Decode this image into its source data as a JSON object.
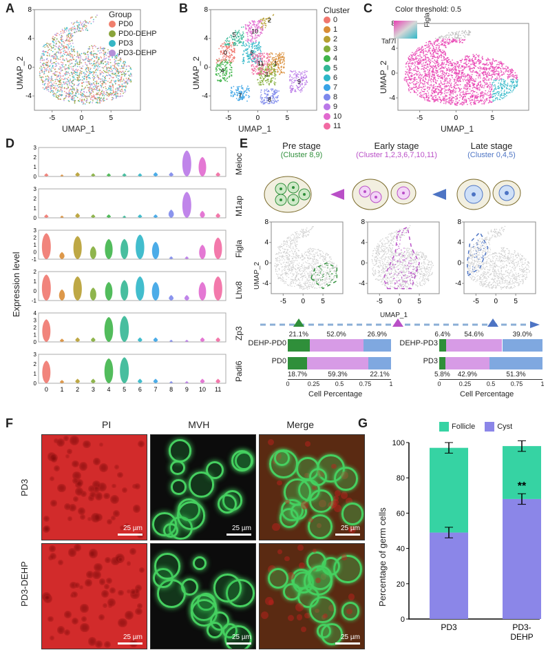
{
  "panels": {
    "A": "A",
    "B": "B",
    "C": "C",
    "D": "D",
    "E": "E",
    "F": "F",
    "G": "G"
  },
  "umap": {
    "x_label": "UMAP_1",
    "y_label": "UMAP_2",
    "xlim": [
      -8,
      10
    ],
    "ylim": [
      -6,
      8
    ],
    "xticks": [
      -5,
      0,
      5
    ],
    "yticks": [
      -4,
      0,
      4,
      8
    ]
  },
  "panelA": {
    "legend_title": "Group",
    "groups": [
      {
        "label": "PD0",
        "color": "#f07f6d"
      },
      {
        "label": "PD0-DEHP",
        "color": "#89a43a"
      },
      {
        "label": "PD3",
        "color": "#36b6c5"
      },
      {
        "label": "PD3-DEHP",
        "color": "#b48fd8"
      }
    ]
  },
  "panelB": {
    "legend_title": "Cluster",
    "clusters": [
      {
        "id": "0",
        "color": "#f0776e"
      },
      {
        "id": "1",
        "color": "#d98d36"
      },
      {
        "id": "2",
        "color": "#b79f31"
      },
      {
        "id": "3",
        "color": "#83ad3a"
      },
      {
        "id": "4",
        "color": "#3fb54a"
      },
      {
        "id": "5",
        "color": "#34b795"
      },
      {
        "id": "6",
        "color": "#2db6c8"
      },
      {
        "id": "7",
        "color": "#39a3e6"
      },
      {
        "id": "8",
        "color": "#7d88ec"
      },
      {
        "id": "9",
        "color": "#b978e8"
      },
      {
        "id": "10",
        "color": "#e169cf"
      },
      {
        "id": "11",
        "color": "#f26aa2"
      }
    ]
  },
  "panelC": {
    "threshold_label": "Color threshold: 0.5",
    "gene_top": "Figla",
    "gene_bottom": "Taf7l",
    "color_top": "#e83fb2",
    "color_bottom": "#2fb7c8"
  },
  "panelD": {
    "y_label": "Expression level",
    "x_ticks": [
      "0",
      "1",
      "2",
      "3",
      "4",
      "5",
      "6",
      "7",
      "8",
      "9",
      "10",
      "11"
    ],
    "genes": [
      {
        "name": "Meioc",
        "y_ticks": [
          "0",
          "1",
          "2",
          "3"
        ],
        "profile": [
          0.3,
          0.2,
          0.4,
          0.3,
          0.3,
          0.3,
          0.3,
          0.4,
          0.4,
          2.4,
          1.8,
          0.4
        ]
      },
      {
        "name": "M1ap",
        "y_ticks": [
          "0",
          "1",
          "2",
          "3"
        ],
        "profile": [
          0.3,
          0.2,
          0.4,
          0.3,
          0.3,
          0.2,
          0.3,
          0.3,
          0.7,
          2.2,
          0.6,
          0.4
        ]
      },
      {
        "name": "Figla",
        "y_ticks": [
          "-1",
          "0",
          "1",
          "2",
          "3"
        ],
        "profile": [
          1.8,
          0.5,
          1.6,
          0.9,
          1.4,
          1.4,
          1.7,
          1.2,
          0.2,
          0.2,
          1.0,
          1.5
        ]
      },
      {
        "name": "Lhx8",
        "y_ticks": [
          "-1",
          "0",
          "1",
          "2"
        ],
        "profile": [
          1.4,
          0.6,
          1.3,
          0.7,
          1.0,
          1.1,
          1.3,
          1.0,
          0.3,
          0.3,
          1.0,
          1.3
        ]
      },
      {
        "name": "Zp3",
        "y_ticks": [
          "0",
          "1",
          "2",
          "3",
          "4"
        ],
        "profile": [
          2.0,
          0.3,
          0.4,
          0.4,
          2.2,
          2.3,
          0.4,
          0.4,
          0.2,
          0.2,
          0.4,
          0.4
        ]
      },
      {
        "name": "Padi6",
        "y_ticks": [
          "0",
          "1",
          "2",
          "3"
        ],
        "profile": [
          2.0,
          0.3,
          0.4,
          0.4,
          2.2,
          2.3,
          0.4,
          0.4,
          0.2,
          0.2,
          0.4,
          0.4
        ]
      }
    ]
  },
  "panelE": {
    "stages": [
      {
        "title": "Pre stage",
        "sub": "(Cluster 8,9)",
        "color": "#2f8f3a"
      },
      {
        "title": "Early stage",
        "sub": "(Cluster 1,2,3,6,7,10,11)",
        "color": "#b94fc7"
      },
      {
        "title": "Late stage",
        "sub": "(Cluster 0,4,5)",
        "color": "#4d74c4"
      }
    ],
    "bar": {
      "x_label": "Cell Percentage",
      "x_ticks": [
        "0",
        "0.25",
        "0.5",
        "0.75",
        "1"
      ],
      "sets": [
        {
          "rows": [
            {
              "label": "DEHP-PD0",
              "values": [
                21.1,
                52.0,
                26.9
              ],
              "labels": [
                "21.1%",
                "52.0%",
                "26.9%"
              ]
            },
            {
              "label": "PD0",
              "values": [
                18.7,
                59.3,
                22.1
              ],
              "labels": [
                "18.7%",
                "59.3%",
                "22.1%"
              ]
            }
          ]
        },
        {
          "rows": [
            {
              "label": "DEHP-PD3",
              "values": [
                6.4,
                54.6,
                39.0
              ],
              "labels": [
                "6.4%",
                "54.6%",
                "39.0%"
              ]
            },
            {
              "label": "PD3",
              "values": [
                5.8,
                42.9,
                51.3
              ],
              "labels": [
                "5.8%",
                "42.9%",
                "51.3%"
              ]
            }
          ]
        }
      ],
      "seg_colors": [
        "#2f8f3a",
        "#d79be6",
        "#7fa8e0"
      ]
    }
  },
  "panelF": {
    "col_headers": [
      "PI",
      "MVH",
      "Merge"
    ],
    "row_headers": [
      "PD3",
      "PD3-DEHP"
    ],
    "scale_label": "25 µm",
    "colors": {
      "pi": "#d22b2b",
      "mvh": "#46d060",
      "merge_bg": "#5a2a12",
      "mvh_bg": "#0c0c0c"
    }
  },
  "panelG": {
    "y_label": "Percentage of germ cells",
    "y_ticks": [
      "0",
      "20",
      "40",
      "60",
      "80",
      "100"
    ],
    "categories": [
      "PD3",
      "PD3-\nDEHP"
    ],
    "legend": [
      {
        "label": "Follicle",
        "color": "#36d3a3"
      },
      {
        "label": "Cyst",
        "color": "#8b86e8"
      }
    ],
    "data": [
      {
        "cyst": 49,
        "follicle": 48,
        "err_cyst": 3,
        "err_fol": 3
      },
      {
        "cyst": 68,
        "follicle": 30,
        "err_cyst": 3,
        "err_fol": 3
      }
    ],
    "sig_label": "**"
  }
}
